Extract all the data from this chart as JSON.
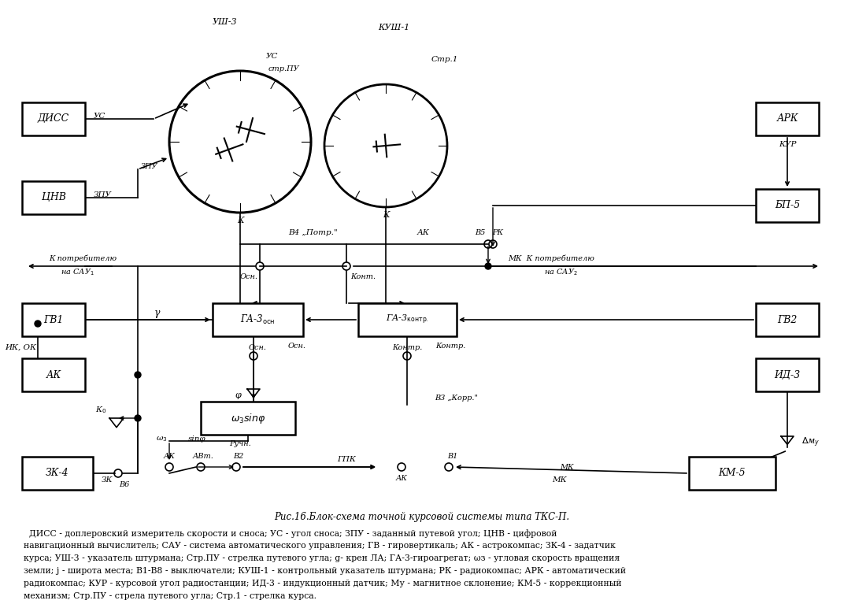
{
  "bg_color": "#ffffff",
  "figsize": [
    10.72,
    7.67
  ],
  "dpi": 100,
  "caption": "Рис.16.Блок-схема точной курсовой системы типа ТКС-П.",
  "description1": "  ДИСС - доплеровский измеритель скорости и сноса; УС - угол сноса; ЗПУ - заданный путевой угол; ЦНВ - цифровой",
  "description2": "навигационный вычислитель; САУ - система автоматического управления; ГВ - гировертикаль; АК - астрокомпас; ЗК-4 - задатчик",
  "description3": "курса; УШ-3 - указатель штурмана; Стр.ПУ - стрелка путевого угла; g- крен ЛА; ГА-3-гироагрегат; ωз - угловая скорость вращения",
  "description4": "земли; j - широта места; В1-В8 - выключатели; КУШ-1 - контрольный указатель штурмана; РК - радиокомпас; АРК - автоматический",
  "description5": "радиокомпас; КУР - курсовой угол радиостанции; ИД-3 - индукционный датчик; Му - магнитное склонение; КМ-5 - коррекционный",
  "description6": "механизм; Стр.ПУ - стрела путевого угла; Стр.1 - стрелка курса."
}
